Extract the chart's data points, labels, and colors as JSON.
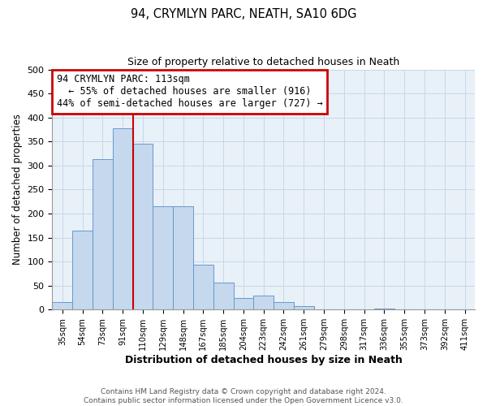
{
  "title": "94, CRYMLYN PARC, NEATH, SA10 6DG",
  "subtitle": "Size of property relative to detached houses in Neath",
  "xlabel": "Distribution of detached houses by size in Neath",
  "ylabel": "Number of detached properties",
  "bar_labels": [
    "35sqm",
    "54sqm",
    "73sqm",
    "91sqm",
    "110sqm",
    "129sqm",
    "148sqm",
    "167sqm",
    "185sqm",
    "204sqm",
    "223sqm",
    "242sqm",
    "261sqm",
    "279sqm",
    "298sqm",
    "317sqm",
    "336sqm",
    "355sqm",
    "373sqm",
    "392sqm",
    "411sqm"
  ],
  "bar_heights": [
    16,
    165,
    313,
    378,
    346,
    215,
    215,
    93,
    56,
    25,
    29,
    15,
    8,
    0,
    0,
    0,
    2,
    0,
    0,
    0,
    0
  ],
  "bar_color": "#c5d8ed",
  "bar_edge_color": "#6699cc",
  "vline_x_index": 4,
  "vline_color": "#cc0000",
  "annotation_title": "94 CRYMLYN PARC: 113sqm",
  "annotation_line1": "← 55% of detached houses are smaller (916)",
  "annotation_line2": "44% of semi-detached houses are larger (727) →",
  "annotation_box_edge": "#cc0000",
  "ylim": [
    0,
    500
  ],
  "yticks": [
    0,
    50,
    100,
    150,
    200,
    250,
    300,
    350,
    400,
    450,
    500
  ],
  "footer1": "Contains HM Land Registry data © Crown copyright and database right 2024.",
  "footer2": "Contains public sector information licensed under the Open Government Licence v3.0.",
  "bg_color": "#e8f0f8",
  "grid_color": "#c8d8e8"
}
